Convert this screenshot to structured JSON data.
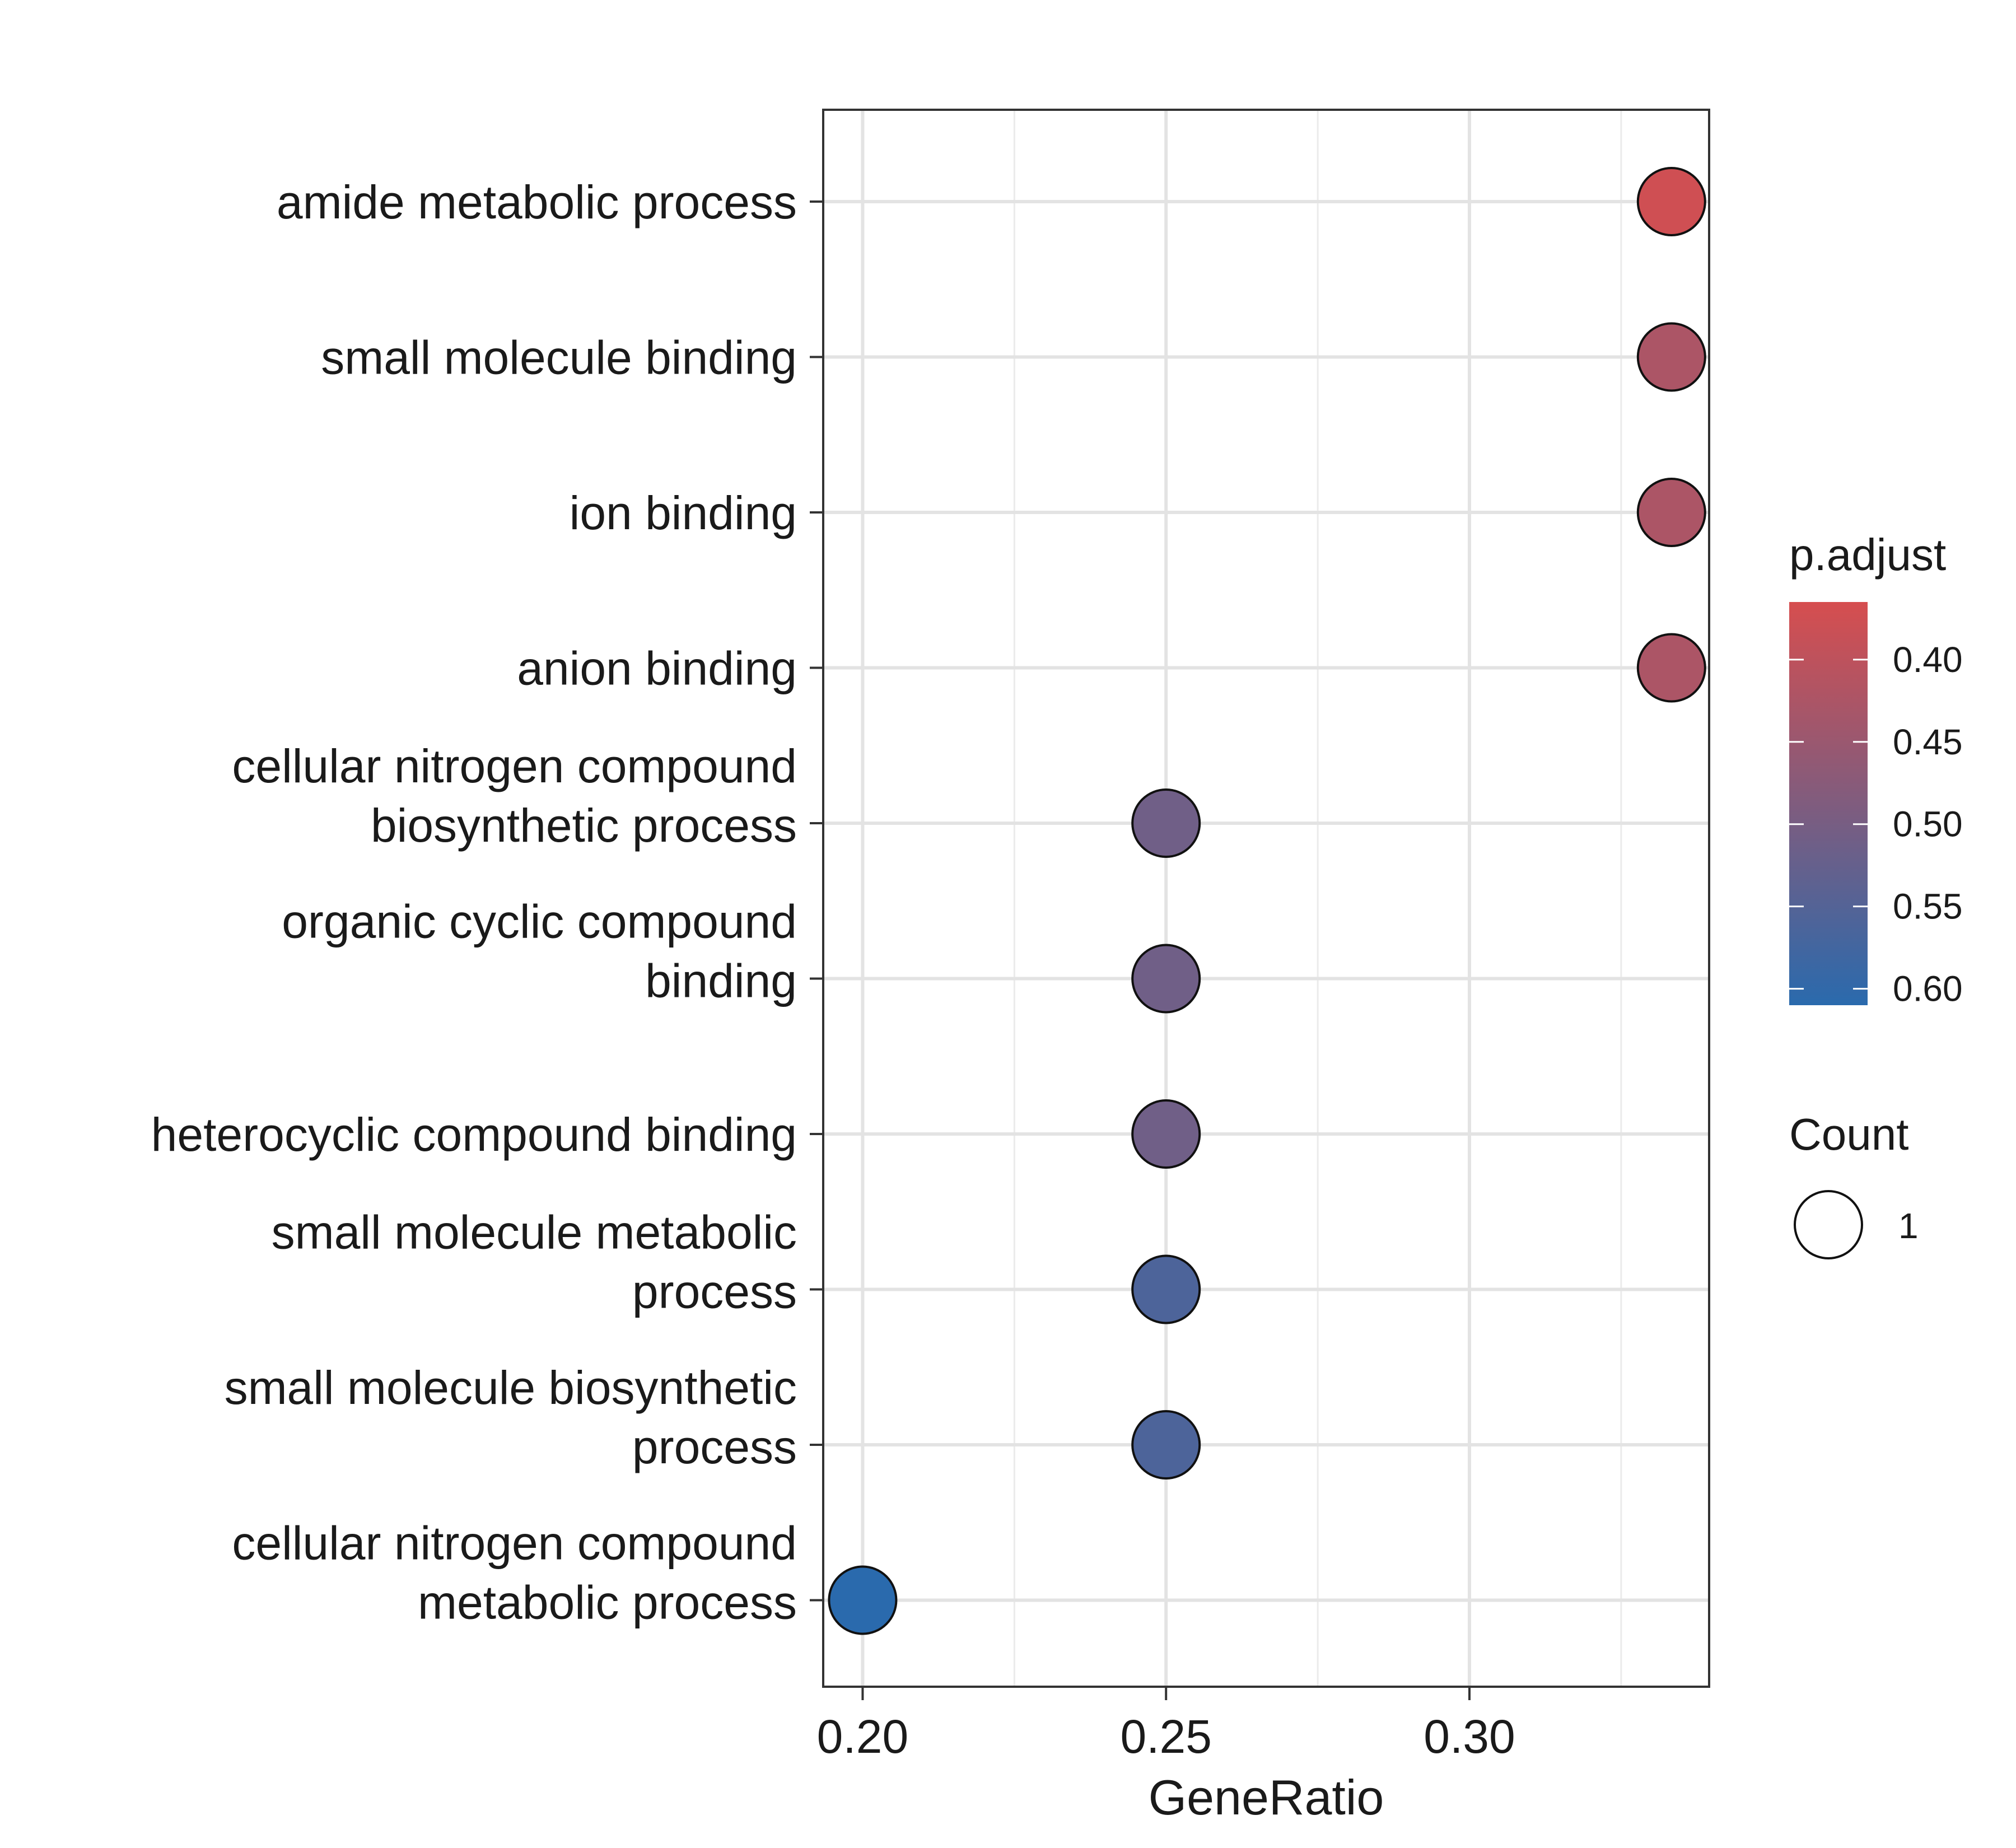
{
  "chart_data": {
    "type": "scatter",
    "title": "",
    "xlabel": "GeneRatio",
    "ylabel": "",
    "xlim": [
      0.1935,
      0.3395
    ],
    "x_ticks": [
      "0.20",
      "0.25",
      "0.30"
    ],
    "x_tick_values": [
      0.2,
      0.25,
      0.3
    ],
    "grid": true,
    "legend_position": "right",
    "categories": [
      {
        "label_lines": [
          "amide metabolic process"
        ]
      },
      {
        "label_lines": [
          "small molecule binding"
        ]
      },
      {
        "label_lines": [
          "ion binding"
        ]
      },
      {
        "label_lines": [
          "anion binding"
        ]
      },
      {
        "label_lines": [
          "cellular nitrogen compound",
          "biosynthetic process"
        ]
      },
      {
        "label_lines": [
          "organic cyclic compound",
          "binding"
        ]
      },
      {
        "label_lines": [
          "heterocyclic compound binding"
        ]
      },
      {
        "label_lines": [
          "small molecule metabolic",
          "process"
        ]
      },
      {
        "label_lines": [
          "small molecule biosynthetic",
          "process"
        ]
      },
      {
        "label_lines": [
          "cellular nitrogen compound",
          "metabolic process"
        ]
      }
    ],
    "points": [
      {
        "gene_ratio": 0.3333,
        "p_adjust": 0.375,
        "count": 1
      },
      {
        "gene_ratio": 0.3333,
        "p_adjust": 0.425,
        "count": 1
      },
      {
        "gene_ratio": 0.3333,
        "p_adjust": 0.425,
        "count": 1
      },
      {
        "gene_ratio": 0.3333,
        "p_adjust": 0.425,
        "count": 1
      },
      {
        "gene_ratio": 0.25,
        "p_adjust": 0.51,
        "count": 1
      },
      {
        "gene_ratio": 0.25,
        "p_adjust": 0.51,
        "count": 1
      },
      {
        "gene_ratio": 0.25,
        "p_adjust": 0.51,
        "count": 1
      },
      {
        "gene_ratio": 0.25,
        "p_adjust": 0.56,
        "count": 1
      },
      {
        "gene_ratio": 0.25,
        "p_adjust": 0.56,
        "count": 1
      },
      {
        "gene_ratio": 0.2,
        "p_adjust": 0.61,
        "count": 1
      }
    ],
    "color_legend": {
      "title": "p.adjust",
      "range": [
        0.365,
        0.61
      ],
      "low_color": "#d64e4f",
      "high_color": "#2a6aad",
      "ticks": [
        "0.40",
        "0.45",
        "0.50",
        "0.55",
        "0.60"
      ],
      "tick_values": [
        0.4,
        0.45,
        0.5,
        0.55,
        0.6
      ]
    },
    "size_legend": {
      "title": "Count",
      "entries": [
        "1"
      ]
    }
  }
}
